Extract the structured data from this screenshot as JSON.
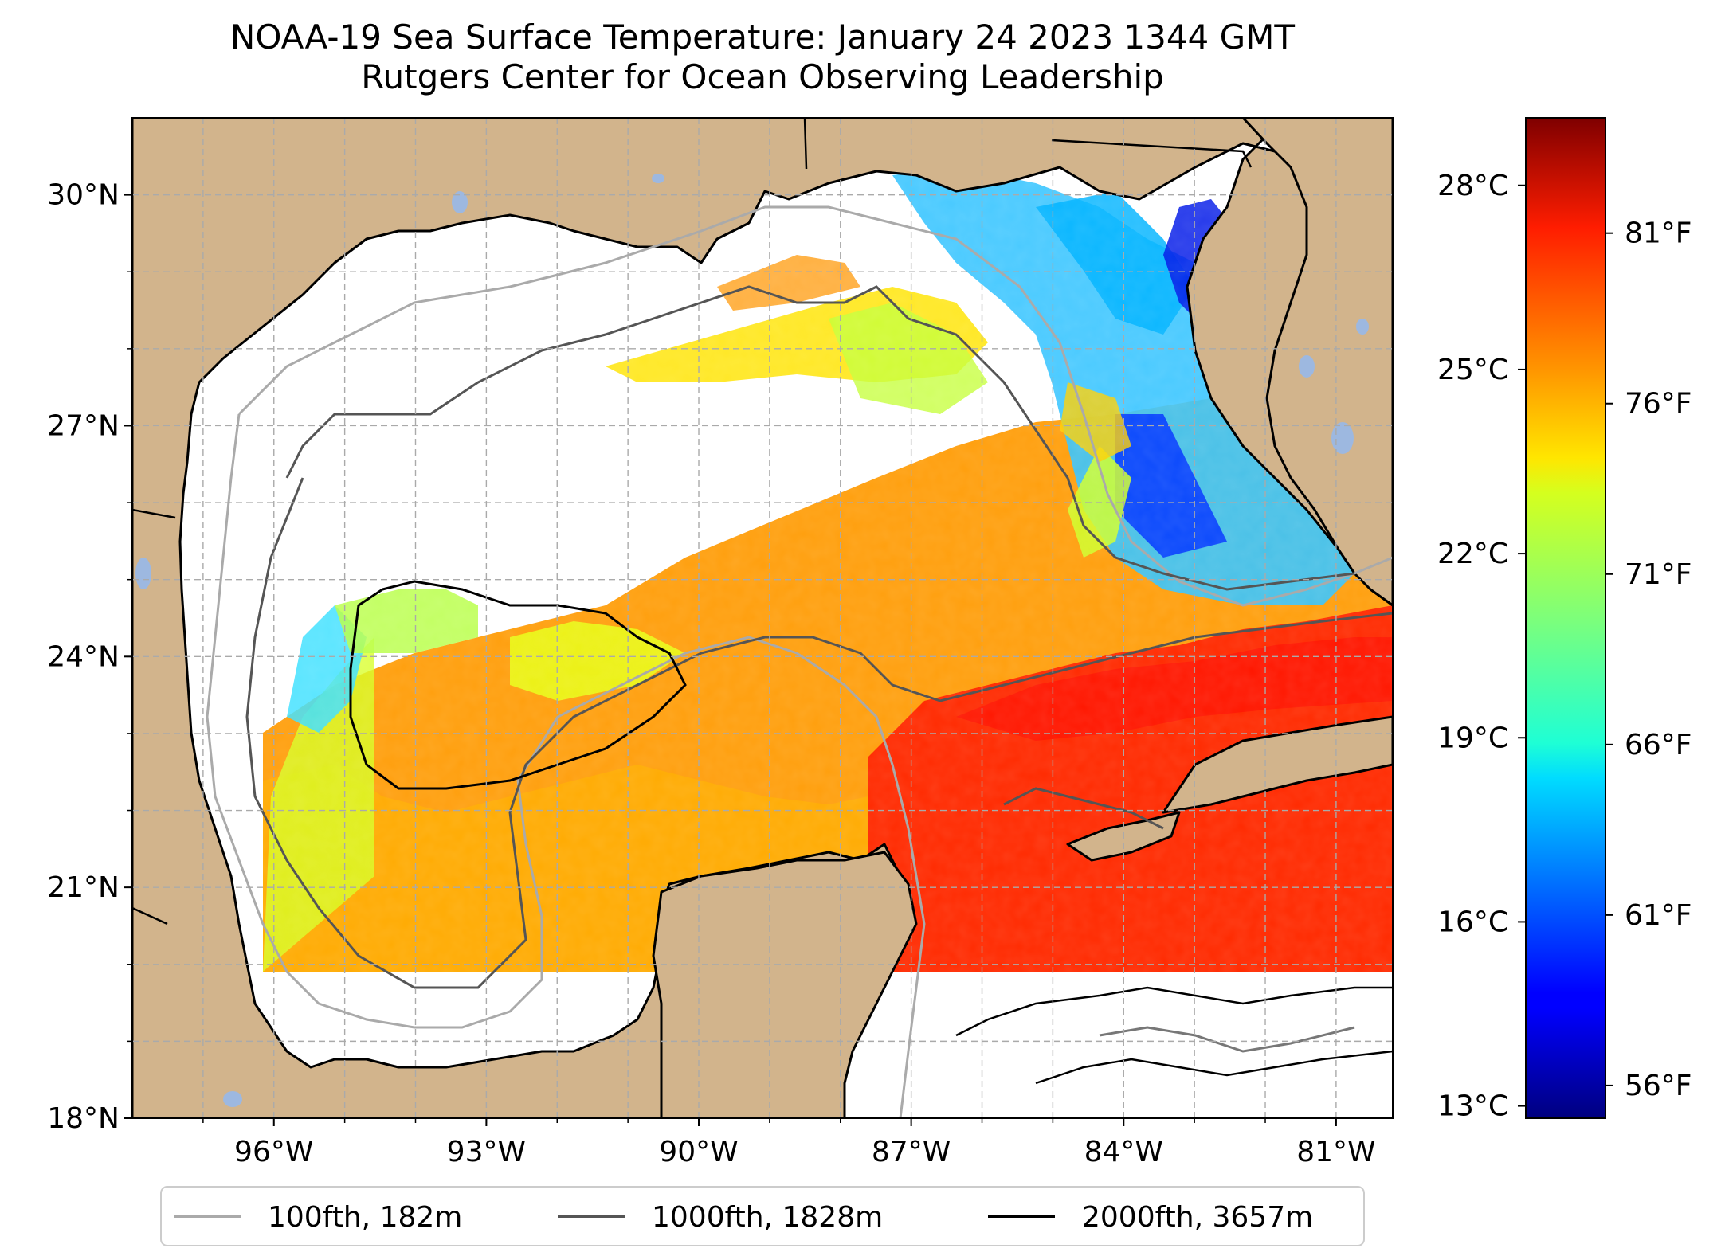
{
  "title": {
    "line1": "NOAA-19 Sea Surface Temperature: January 24 2023 1344 GMT",
    "line2": "Rutgers Center for Ocean Observing Leadership"
  },
  "map": {
    "extent": {
      "lon_min": -98.0,
      "lon_max": -80.2,
      "lat_min": 18.0,
      "lat_max": 31.0
    },
    "lat_ticks": [
      {
        "value": 30,
        "label": "30°N"
      },
      {
        "value": 27,
        "label": "27°N"
      },
      {
        "value": 24,
        "label": "24°N"
      },
      {
        "value": 21,
        "label": "21°N"
      },
      {
        "value": 18,
        "label": "18°N"
      }
    ],
    "lon_ticks": [
      {
        "value": -96,
        "label": "96°W"
      },
      {
        "value": -93,
        "label": "93°W"
      },
      {
        "value": -90,
        "label": "90°W"
      },
      {
        "value": -87,
        "label": "87°W"
      },
      {
        "value": -84,
        "label": "84°W"
      },
      {
        "value": -81,
        "label": "81°W"
      }
    ],
    "gridlines": true,
    "land_color": "#d2b48c",
    "lake_color": "#9db8e0",
    "coastline_color": "#000000"
  },
  "colorbar": {
    "colormap": "jet",
    "celsius_range": [
      12.8,
      29.1
    ],
    "celsius_ticks": [
      {
        "value": 28,
        "label": "28°C"
      },
      {
        "value": 25,
        "label": "25°C"
      },
      {
        "value": 22,
        "label": "22°C"
      },
      {
        "value": 19,
        "label": "19°C"
      },
      {
        "value": 16,
        "label": "16°C"
      },
      {
        "value": 13,
        "label": "13°C"
      }
    ],
    "fahrenheit_ticks": [
      {
        "value": 81,
        "label": "81°F"
      },
      {
        "value": 76,
        "label": "76°F"
      },
      {
        "value": 71,
        "label": "71°F"
      },
      {
        "value": 66,
        "label": "66°F"
      },
      {
        "value": 61,
        "label": "61°F"
      },
      {
        "value": 56,
        "label": "56°F"
      }
    ]
  },
  "legend": {
    "placement": "bottom-center",
    "items": [
      {
        "label": "100fth, 182m",
        "color": "#aaaaaa"
      },
      {
        "label": "1000fth, 1828m",
        "color": "#555555"
      },
      {
        "label": "2000fth, 3657m",
        "color": "#000000"
      }
    ]
  }
}
